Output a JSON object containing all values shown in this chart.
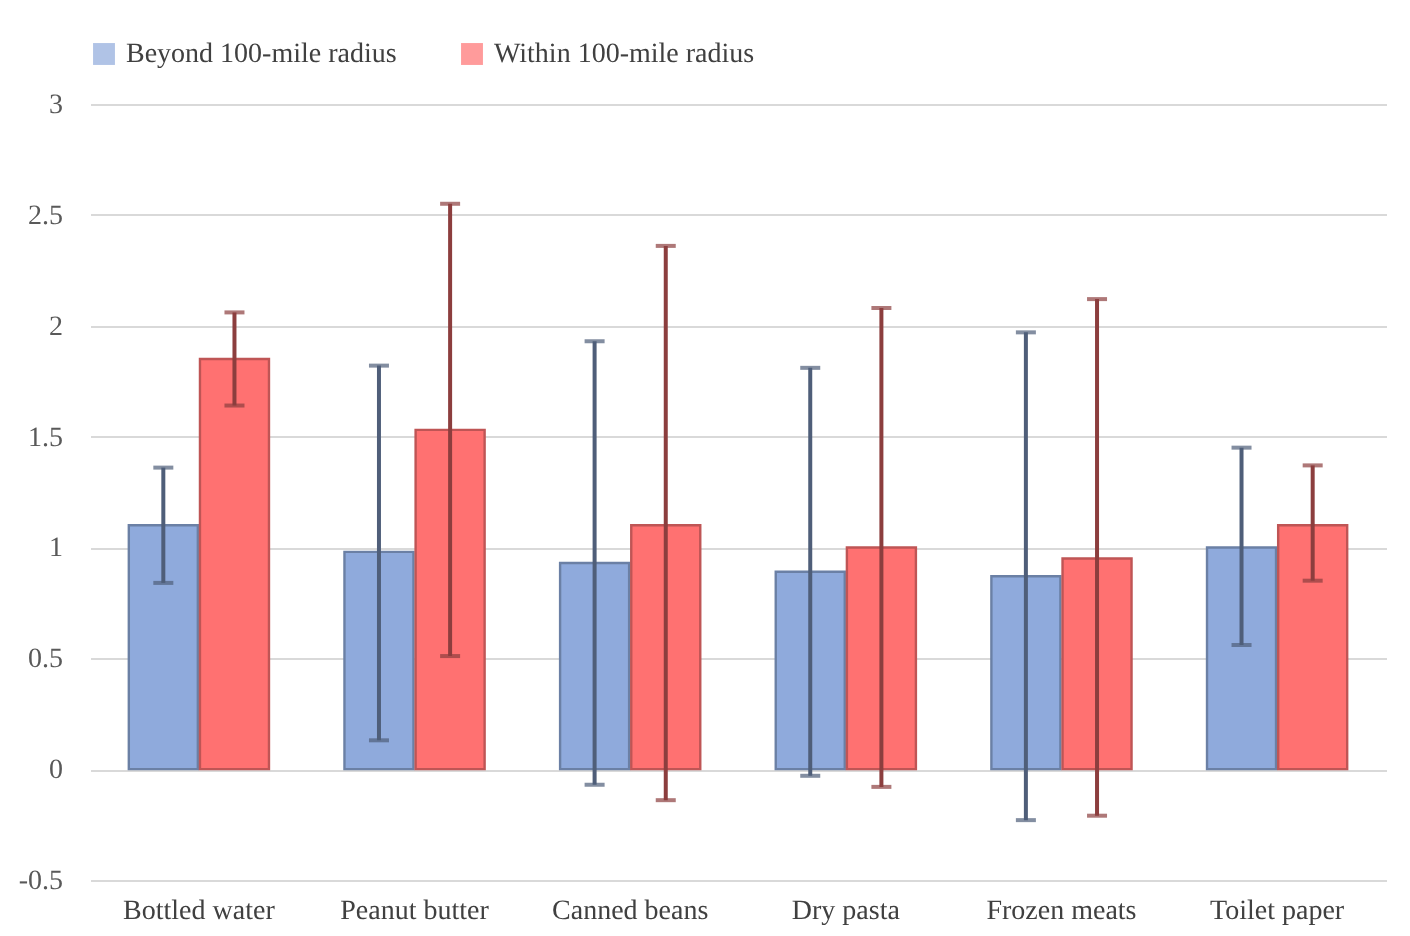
{
  "chart_data": {
    "type": "bar",
    "categories": [
      "Bottled water",
      "Peanut butter",
      "Canned beans",
      "Dry pasta",
      "Frozen meats",
      "Toilet paper"
    ],
    "series": [
      {
        "name": "Beyond 100-mile radius",
        "color": "#8faadc",
        "values": [
          1.1,
          0.98,
          0.93,
          0.89,
          0.87,
          1.0
        ],
        "errors": [
          [
            0.84,
            1.36
          ],
          [
            0.13,
            1.82
          ],
          [
            -0.07,
            1.93
          ],
          [
            -0.03,
            1.81
          ],
          [
            -0.23,
            1.97
          ],
          [
            0.56,
            1.45
          ]
        ]
      },
      {
        "name": "Within 100-mile radius",
        "color": "#ff7171",
        "values": [
          1.85,
          1.53,
          1.1,
          1.0,
          0.95,
          1.1
        ],
        "errors": [
          [
            1.64,
            2.06
          ],
          [
            0.51,
            2.55
          ],
          [
            -0.14,
            2.36
          ],
          [
            -0.08,
            2.08
          ],
          [
            -0.21,
            2.12
          ],
          [
            0.85,
            1.37
          ]
        ]
      }
    ],
    "ylim": [
      -0.5,
      3
    ],
    "yticks": [
      -0.5,
      0,
      0.5,
      1,
      1.5,
      2,
      2.5,
      3
    ],
    "grid": "y",
    "legend": "top"
  }
}
